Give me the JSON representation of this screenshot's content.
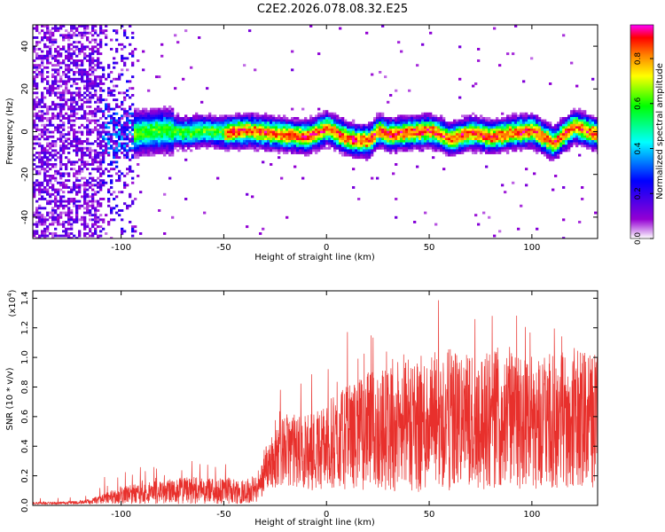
{
  "title": "C2E2.2026.078.08.32.E25",
  "chart_data": [
    {
      "type": "heatmap",
      "name": "spectrogram",
      "xlabel": "Height of straight line (km)",
      "ylabel": "Frequency (Hz)",
      "xlim": [
        -143,
        132
      ],
      "ylim": [
        -50,
        50
      ],
      "x_ticks": [
        -100,
        -50,
        0,
        50,
        100
      ],
      "y_ticks": [
        -40,
        -20,
        0,
        20,
        40
      ],
      "x_tick_labels": [
        "-100",
        "-50",
        "0",
        "50",
        "100"
      ],
      "y_tick_labels": [
        "-40",
        "-20",
        "0",
        "20",
        "40"
      ],
      "colorbar": {
        "label": "Normalized spectral amplitude",
        "range": [
          0.0,
          0.95
        ],
        "ticks": [
          0.0,
          0.2,
          0.4,
          0.6,
          0.8
        ],
        "tick_labels": [
          "0.0",
          "0.2",
          "0.4",
          "0.6",
          "0.8"
        ],
        "colormap": [
          "#ffffff",
          "#9400d3",
          "#0000ff",
          "#00ffff",
          "#00ff00",
          "#ffff00",
          "#ff7f00",
          "#ff0000",
          "#ff00ff"
        ]
      },
      "ridge": {
        "x": [
          -110,
          -100,
          -90,
          -80,
          -70,
          -60,
          -50,
          -40,
          -30,
          -20,
          -10,
          0,
          10,
          20,
          25,
          30,
          40,
          50,
          60,
          70,
          80,
          90,
          100,
          110,
          120,
          132
        ],
        "frequency_hz": [
          0,
          -1,
          0,
          1,
          0,
          1,
          0,
          1,
          0,
          -1,
          -2,
          2,
          -3,
          -4,
          1,
          -1,
          0,
          1,
          -3,
          0,
          -2,
          0,
          1,
          -5,
          3,
          -1
        ]
      }
    },
    {
      "type": "line",
      "name": "snr",
      "xlabel": "Height of straight line (km)",
      "ylabel": "SNR (10 * v/v)",
      "y_multiplier_label": "(x10",
      "y_multiplier_exp": "4",
      "y_multiplier_close": ")",
      "xlim": [
        -143,
        132
      ],
      "ylim": [
        0,
        14500
      ],
      "x_ticks": [
        -100,
        -50,
        0,
        50,
        100
      ],
      "x_tick_labels": [
        "-100",
        "-50",
        "0",
        "50",
        "100"
      ],
      "y_ticks": [
        0,
        2000,
        4000,
        6000,
        8000,
        10000,
        12000,
        14000
      ],
      "y_tick_labels": [
        "0.0",
        "0.2",
        "0.4",
        "0.6",
        "0.8",
        "1.0",
        "1.2",
        "1.4"
      ],
      "color": "#e8302c",
      "envelope": {
        "x": [
          -143,
          -130,
          -120,
          -110,
          -100,
          -90,
          -80,
          -70,
          -60,
          -50,
          -40,
          -33,
          -30,
          -25,
          -20,
          -10,
          0,
          10,
          20,
          30,
          40,
          50,
          60,
          70,
          80,
          90,
          100,
          110,
          120,
          132
        ],
        "mean": [
          150,
          150,
          200,
          400,
          700,
          800,
          900,
          1000,
          1000,
          1000,
          1000,
          1100,
          2500,
          3200,
          3800,
          3600,
          4000,
          4600,
          5000,
          5200,
          5400,
          5600,
          5800,
          5700,
          5900,
          5800,
          5800,
          5600,
          5800,
          6000
        ],
        "spread": [
          80,
          80,
          120,
          300,
          600,
          700,
          800,
          900,
          900,
          900,
          900,
          900,
          1500,
          2000,
          2400,
          2600,
          3000,
          3500,
          4000,
          4300,
          4500,
          4700,
          4800,
          4700,
          4800,
          4700,
          4700,
          4600,
          4700,
          4800
        ],
        "peak": [
          500,
          500,
          700,
          1800,
          2400,
          2600,
          2800,
          3100,
          3100,
          3000,
          3000,
          3200,
          5300,
          7200,
          9000,
          8500,
          9800,
          11700,
          12300,
          12500,
          13200,
          13500,
          14300,
          13000,
          12800,
          12900,
          12600,
          12000,
          11500,
          10000
        ]
      }
    }
  ]
}
